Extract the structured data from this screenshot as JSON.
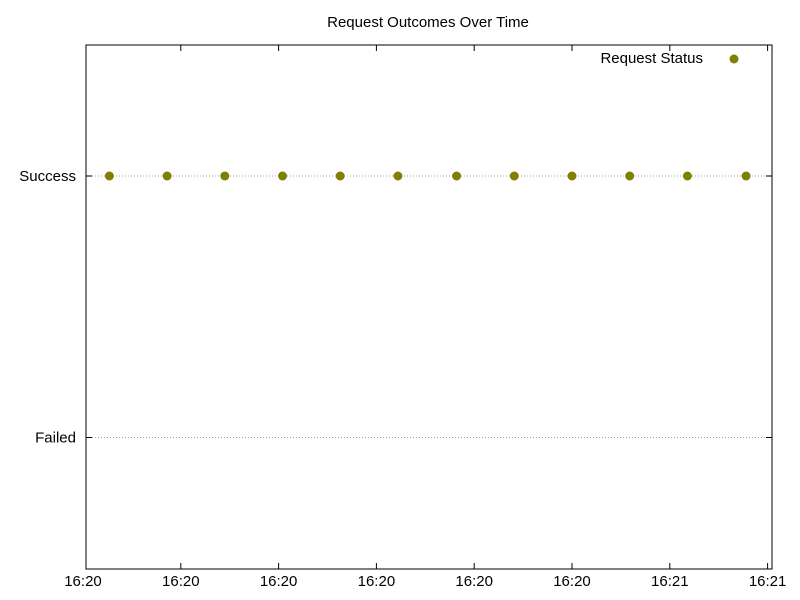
{
  "chart_data": {
    "type": "scatter",
    "title": "Request Outcomes Over Time",
    "xlabel": "",
    "ylabel": "",
    "y_categories": [
      "Failed",
      "Success"
    ],
    "x_ticks": [
      "16:20",
      "16:20",
      "16:20",
      "16:20",
      "16:20",
      "16:20",
      "16:21",
      "16:21",
      "16:21"
    ],
    "ytick_grid": true,
    "legend_position": "top-right",
    "series": [
      {
        "name": "Request Status",
        "color": "#808000",
        "marker": "circle",
        "points_index": [
          0.27,
          0.86,
          1.45,
          2.04,
          2.63,
          3.22,
          3.82,
          4.41,
          5.0,
          5.59,
          6.18,
          6.78
        ],
        "values": [
          "Success",
          "Success",
          "Success",
          "Success",
          "Success",
          "Success",
          "Success",
          "Success",
          "Success",
          "Success",
          "Success",
          "Success"
        ]
      }
    ]
  }
}
